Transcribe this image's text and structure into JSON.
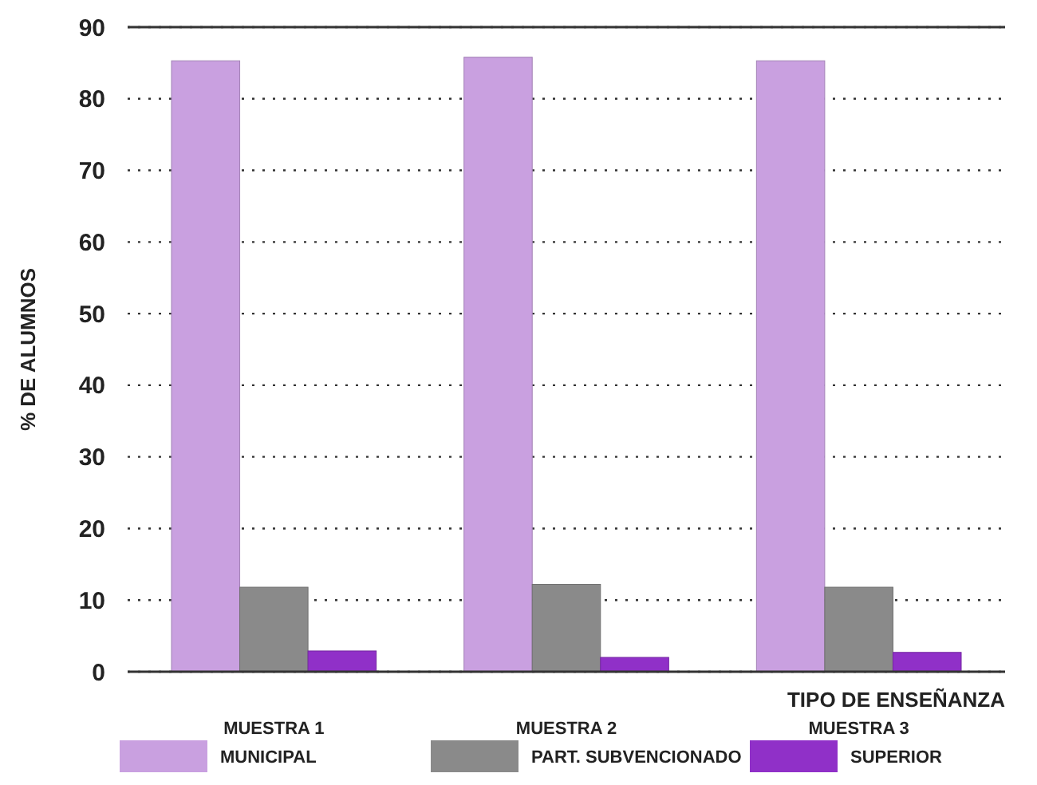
{
  "chart_data": {
    "type": "bar",
    "xlabel": "TIPO DE ENSEÑANZA",
    "ylabel": "% DE ALUMNOS",
    "categories": [
      "MUESTRA 1",
      "MUESTRA 2",
      "MUESTRA 3"
    ],
    "series": [
      {
        "name": "MUNICIPAL",
        "color": "#c9a0e0",
        "values": [
          85.3,
          85.8,
          85.3
        ]
      },
      {
        "name": "PART. SUBVENCIONADO",
        "color": "#8a8a8a",
        "values": [
          11.8,
          12.2,
          11.8
        ]
      },
      {
        "name": "SUPERIOR",
        "color": "#9030c8",
        "values": [
          2.9,
          2.0,
          2.7
        ]
      }
    ],
    "ylim": [
      0,
      90
    ],
    "yticks": [
      0,
      10,
      20,
      30,
      40,
      50,
      60,
      70,
      80,
      90
    ],
    "grid": "y",
    "legend": "bottom"
  }
}
